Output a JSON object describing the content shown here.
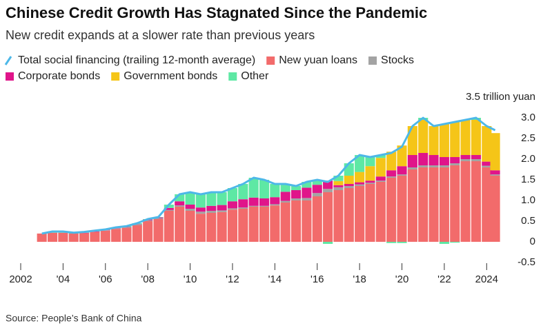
{
  "chart_data": {
    "type": "bar",
    "title": "Chinese Credit Growth Has Stagnated Since the Pandemic",
    "subtitle": "New credit expands at a slower rate than previous years",
    "source": "Source: People’s Bank of China",
    "x": [
      2003,
      2003.5,
      2004,
      2004.5,
      2005,
      2005.5,
      2006,
      2006.5,
      2007,
      2007.5,
      2008,
      2008.5,
      2009,
      2009.5,
      2010,
      2010.5,
      2011,
      2011.5,
      2012,
      2012.5,
      2013,
      2013.5,
      2014,
      2014.5,
      2015,
      2015.5,
      2016,
      2016.5,
      2017,
      2017.5,
      2018,
      2018.5,
      2019,
      2019.5,
      2020,
      2020.5,
      2021,
      2021.5,
      2022,
      2022.5,
      2023,
      2023.5,
      2024,
      2024.4
    ],
    "series": [
      {
        "name": "Total social financing (trailing 12-month average)",
        "mark": "line",
        "color": "#4db8e8",
        "values": [
          0.2,
          0.25,
          0.25,
          0.22,
          0.24,
          0.27,
          0.3,
          0.35,
          0.38,
          0.45,
          0.55,
          0.6,
          0.9,
          1.15,
          1.2,
          1.15,
          1.2,
          1.2,
          1.3,
          1.4,
          1.55,
          1.5,
          1.4,
          1.4,
          1.35,
          1.45,
          1.5,
          1.45,
          1.6,
          1.9,
          2.1,
          2.05,
          2.1,
          2.15,
          2.3,
          2.8,
          3.0,
          2.8,
          2.85,
          2.9,
          2.95,
          3.0,
          2.8,
          2.7
        ]
      },
      {
        "name": "New yuan loans",
        "mark": "bar",
        "color": "#f26b6b",
        "values": [
          0.2,
          0.22,
          0.22,
          0.2,
          0.21,
          0.24,
          0.27,
          0.31,
          0.34,
          0.4,
          0.5,
          0.55,
          0.75,
          0.85,
          0.75,
          0.68,
          0.7,
          0.72,
          0.78,
          0.8,
          0.85,
          0.85,
          0.88,
          0.95,
          1.0,
          1.0,
          1.1,
          1.2,
          1.25,
          1.3,
          1.35,
          1.4,
          1.45,
          1.55,
          1.6,
          1.75,
          1.8,
          1.8,
          1.8,
          1.85,
          1.95,
          1.95,
          1.8,
          1.6
        ]
      },
      {
        "name": "Stocks",
        "mark": "bar",
        "color": "#a3a3a3",
        "values": [
          0.0,
          0.0,
          0.0,
          0.0,
          0.0,
          0.0,
          0.01,
          0.01,
          0.01,
          0.02,
          0.02,
          0.02,
          0.02,
          0.03,
          0.05,
          0.05,
          0.05,
          0.04,
          0.03,
          0.03,
          0.02,
          0.02,
          0.03,
          0.04,
          0.05,
          0.06,
          0.08,
          0.08,
          0.07,
          0.05,
          0.04,
          0.03,
          0.03,
          0.03,
          0.03,
          0.05,
          0.05,
          0.05,
          0.05,
          0.05,
          0.05,
          0.05,
          0.04,
          0.03
        ]
      },
      {
        "name": "Corporate bonds",
        "mark": "bar",
        "color": "#e0158a",
        "values": [
          0.0,
          0.0,
          0.0,
          0.0,
          0.01,
          0.01,
          0.01,
          0.01,
          0.01,
          0.01,
          0.02,
          0.02,
          0.05,
          0.1,
          0.1,
          0.1,
          0.12,
          0.13,
          0.17,
          0.2,
          0.2,
          0.18,
          0.17,
          0.22,
          0.2,
          0.25,
          0.2,
          0.2,
          0.05,
          0.05,
          0.05,
          0.05,
          0.1,
          0.15,
          0.2,
          0.3,
          0.3,
          0.25,
          0.2,
          0.15,
          0.1,
          0.1,
          0.1,
          0.1
        ]
      },
      {
        "name": "Government bonds",
        "mark": "bar",
        "color": "#f5c518",
        "values": [
          0,
          0,
          0,
          0,
          0,
          0,
          0,
          0,
          0,
          0,
          0,
          0,
          0,
          0,
          0,
          0,
          0,
          0,
          0,
          0,
          0,
          0,
          0,
          0,
          0,
          0,
          0,
          0,
          0.1,
          0.2,
          0.25,
          0.35,
          0.45,
          0.45,
          0.5,
          0.7,
          0.8,
          0.7,
          0.8,
          0.85,
          0.85,
          0.85,
          0.86,
          0.9
        ]
      },
      {
        "name": "Other",
        "mark": "bar",
        "color": "#5ee8a4",
        "values": [
          0.0,
          0.03,
          0.03,
          0.02,
          0.02,
          0.02,
          0.01,
          0.02,
          0.02,
          0.02,
          0.01,
          0.01,
          0.08,
          0.17,
          0.3,
          0.32,
          0.33,
          0.31,
          0.32,
          0.37,
          0.48,
          0.45,
          0.32,
          0.19,
          0.1,
          0.14,
          0.12,
          -0.05,
          0.13,
          0.3,
          0.41,
          0.22,
          0.07,
          -0.03,
          -0.03,
          0.0,
          0.05,
          0.0,
          -0.05,
          -0.02,
          0.0,
          0.05,
          0.0,
          0.0
        ]
      }
    ],
    "xlim": [
      2002,
      2025
    ],
    "xticks": [
      2002,
      {
        "value": 2004,
        "label": "'04"
      },
      {
        "value": 2006,
        "label": "'06"
      },
      {
        "value": 2008,
        "label": "'08"
      },
      {
        "value": 2010,
        "label": "'10"
      },
      {
        "value": 2012,
        "label": "'12"
      },
      {
        "value": 2014,
        "label": "'14"
      },
      {
        "value": 2016,
        "label": "'16"
      },
      {
        "value": 2018,
        "label": "'18"
      },
      {
        "value": 2020,
        "label": "'20"
      },
      {
        "value": 2022,
        "label": "'22"
      },
      2024
    ],
    "ylim": [
      -0.5,
      3.5
    ],
    "yticks": [
      -0.5,
      0,
      0.5,
      {
        "value": 1,
        "label": "1.0"
      },
      1.5,
      {
        "value": 2,
        "label": "2.0"
      },
      2.5,
      {
        "value": 3,
        "label": "3.0"
      },
      {
        "value": 3.5,
        "label": "3.5 trillion yuan"
      }
    ],
    "grid": false
  }
}
